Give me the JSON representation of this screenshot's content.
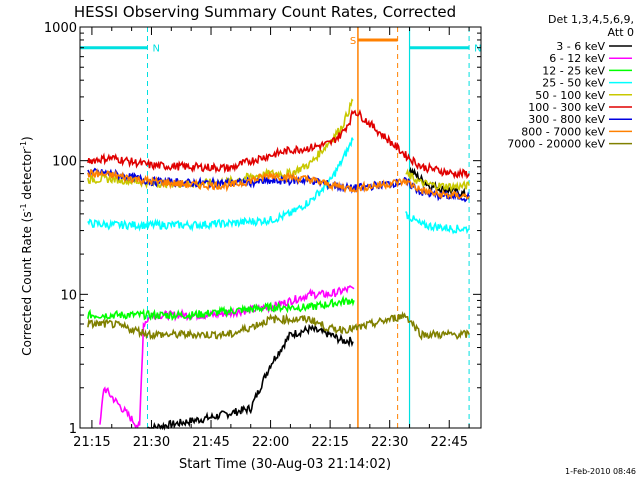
{
  "chart_data": {
    "type": "line",
    "title": "HESSI Observing Summary Count Rates, Corrected",
    "xlabel": "Start Time (30-Aug-03 21:14:02)",
    "ylabel_main": "Corrected Count Rate (s",
    "ylabel_sup1": "-1",
    "ylabel_mid": " detector",
    "ylabel_sup2": "-1",
    "ylabel_end": ")",
    "footer": "1-Feb-2010 08:46",
    "yscale": "log",
    "xlim": [
      "21:12",
      "22:53"
    ],
    "ylim": [
      1,
      1000
    ],
    "xticks": [
      "21:15",
      "21:30",
      "21:45",
      "22:00",
      "22:15",
      "22:30",
      "22:45"
    ],
    "yticks": [
      "1",
      "10",
      "100",
      "1000"
    ],
    "legend_position": "right",
    "legend_title_line1": "Det 1,3,4,5,6,9,",
    "legend_title_line2": "Att 0",
    "flags": [
      {
        "label": "N",
        "start": "21:12",
        "end": "21:29",
        "y": 700,
        "color": "#00e0e0"
      },
      {
        "label": "N",
        "start": "22:35",
        "end": "22:50",
        "y": 700,
        "color": "#00e0e0"
      },
      {
        "label": "S",
        "start": "22:22",
        "end": "22:32",
        "y": 800,
        "color": "#ff8000"
      }
    ],
    "series": [
      {
        "name": "3 - 6 keV",
        "color": "#000000",
        "x": [
          "21:29",
          "21:30",
          "21:45",
          "21:55",
          "22:00",
          "22:05",
          "22:10",
          "22:15",
          "22:18",
          "22:20",
          "22:21",
          "22:35",
          "22:40",
          "22:45",
          "22:50"
        ],
        "values": [
          1,
          1,
          1.2,
          1.4,
          3,
          5,
          5.5,
          5,
          4.5,
          4.5,
          4.5,
          85,
          65,
          60,
          55
        ]
      },
      {
        "name": "6 - 12 keV",
        "color": "#ff00ff",
        "x": [
          "21:17",
          "21:18",
          "21:27",
          "21:28",
          "21:30",
          "21:45",
          "22:00",
          "22:10",
          "22:15",
          "22:20",
          "22:21"
        ],
        "values": [
          1,
          2,
          1,
          6,
          7,
          7,
          8,
          10,
          10,
          11,
          11
        ]
      },
      {
        "name": "12 - 25 keV",
        "color": "#00ff00",
        "x": [
          "21:14",
          "21:20",
          "21:30",
          "21:40",
          "21:50",
          "22:00",
          "22:10",
          "22:15",
          "22:20",
          "22:21"
        ],
        "values": [
          7,
          7,
          7,
          7,
          7.5,
          8,
          8,
          8.5,
          9,
          9
        ]
      },
      {
        "name": "25 - 50 keV",
        "color": "#00ffff",
        "x": [
          "21:14",
          "21:20",
          "21:30",
          "21:40",
          "21:50",
          "22:00",
          "22:05",
          "22:10",
          "22:15",
          "22:18",
          "22:20",
          "22:21",
          "22:34",
          "22:38",
          "22:42",
          "22:46",
          "22:50"
        ],
        "values": [
          34,
          33,
          33,
          33,
          34,
          36,
          40,
          50,
          70,
          100,
          130,
          160,
          40,
          33,
          32,
          31,
          31
        ]
      },
      {
        "name": "50 - 100 keV",
        "color": "#c8c800",
        "x": [
          "21:14",
          "21:20",
          "21:30",
          "21:40",
          "21:50",
          "21:55",
          "22:00",
          "22:05",
          "22:10",
          "22:15",
          "22:18",
          "22:20",
          "22:21",
          "22:34",
          "22:38",
          "22:42",
          "22:46",
          "22:50"
        ],
        "values": [
          72,
          73,
          68,
          67,
          70,
          76,
          80,
          80,
          95,
          140,
          180,
          250,
          300,
          80,
          68,
          65,
          64,
          65
        ]
      },
      {
        "name": "100 - 300 keV",
        "color": "#e00000",
        "x": [
          "21:14",
          "21:20",
          "21:30",
          "21:40",
          "21:50",
          "21:55",
          "22:00",
          "22:05",
          "22:10",
          "22:15",
          "22:18",
          "22:20",
          "22:21",
          "22:34",
          "22:38",
          "22:42",
          "22:46",
          "22:50"
        ],
        "values": [
          100,
          105,
          92,
          90,
          88,
          100,
          110,
          120,
          125,
          135,
          160,
          200,
          240,
          110,
          90,
          85,
          80,
          80
        ]
      },
      {
        "name": "300 - 800 keV",
        "color": "#0000e0",
        "x": [
          "21:14",
          "21:20",
          "21:30",
          "21:40",
          "21:50",
          "22:00",
          "22:10",
          "22:15",
          "22:20",
          "22:21",
          "22:34",
          "22:38",
          "22:42",
          "22:46",
          "22:50"
        ],
        "values": [
          82,
          80,
          70,
          68,
          68,
          70,
          72,
          66,
          62,
          62,
          70,
          58,
          55,
          54,
          53
        ]
      },
      {
        "name": "800 - 7000 keV",
        "color": "#ff8000",
        "x": [
          "21:14",
          "21:20",
          "21:30",
          "21:40",
          "21:50",
          "22:00",
          "22:10",
          "22:15",
          "22:20",
          "22:21",
          "22:34",
          "22:38",
          "22:42",
          "22:46",
          "22:50"
        ],
        "values": [
          80,
          78,
          70,
          66,
          65,
          78,
          72,
          66,
          62,
          62,
          70,
          60,
          56,
          55,
          54
        ]
      },
      {
        "name": "7000 - 20000 keV",
        "color": "#808000",
        "x": [
          "21:14",
          "21:20",
          "21:30",
          "21:40",
          "21:50",
          "22:00",
          "22:10",
          "22:15",
          "22:20",
          "22:21",
          "22:34",
          "22:38",
          "22:42",
          "22:46",
          "22:50"
        ],
        "values": [
          6,
          6,
          5,
          5,
          5,
          6.5,
          6.5,
          5.5,
          5.5,
          5.5,
          7,
          5,
          5,
          5,
          5
        ]
      }
    ]
  }
}
